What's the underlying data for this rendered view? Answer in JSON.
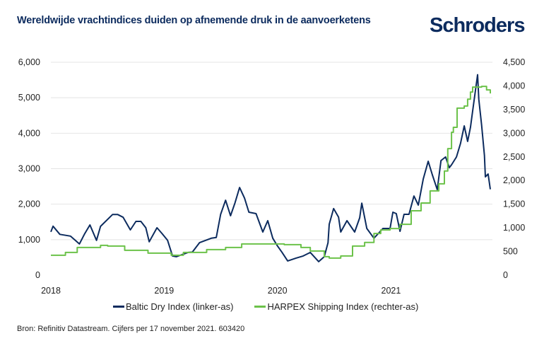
{
  "title": "Wereldwijde vrachtindices duiden op afnemende druk in de aanvoerketens",
  "logo_text": "Schroders",
  "source": "Bron: Refinitiv Datastream. Cijfers per 17 november 2021. 603420",
  "colors": {
    "baltic": "#0c2b5e",
    "harpex": "#6cc24a",
    "grid": "#e4e4e4",
    "brand": "#0c2b5e"
  },
  "chart_data": {
    "type": "line",
    "title": "Wereldwijde vrachtindices duiden op afnemende druk in de aanvoerketens",
    "xlim": [
      "2018-01-01",
      "2021-11-17"
    ],
    "x_ticks": [
      {
        "date": "2018-01-01",
        "label": "2018"
      },
      {
        "date": "2019-01-01",
        "label": "2019"
      },
      {
        "date": "2020-01-01",
        "label": "2020"
      },
      {
        "date": "2021-01-01",
        "label": "2021"
      }
    ],
    "y_left": {
      "lim": [
        0,
        6000
      ],
      "ticks": [
        0,
        1000,
        2000,
        3000,
        4000,
        5000,
        6000
      ],
      "tick_labels": [
        "0",
        "1,000",
        "2,000",
        "3,000",
        "4,000",
        "5,000",
        "6,000"
      ]
    },
    "y_right": {
      "lim": [
        0,
        4500
      ],
      "ticks": [
        0,
        500,
        1000,
        1500,
        2000,
        2500,
        3000,
        3500,
        4000,
        4500
      ],
      "tick_labels": [
        "0",
        "500",
        "1,000",
        "1,500",
        "2,000",
        "2,500",
        "3,000",
        "3,500",
        "4,000",
        "4,500"
      ]
    },
    "grid": true,
    "legend_placement": "bottom",
    "series": [
      {
        "name": "Baltic Dry Index (linker-as)",
        "axis": "left",
        "color": "#0c2b5e",
        "points": [
          [
            "2018-01-01",
            1220
          ],
          [
            "2018-01-08",
            1380
          ],
          [
            "2018-01-30",
            1150
          ],
          [
            "2018-03-05",
            1100
          ],
          [
            "2018-04-03",
            880
          ],
          [
            "2018-04-19",
            1150
          ],
          [
            "2018-05-07",
            1415
          ],
          [
            "2018-05-28",
            980
          ],
          [
            "2018-06-10",
            1375
          ],
          [
            "2018-07-19",
            1710
          ],
          [
            "2018-08-04",
            1710
          ],
          [
            "2018-08-22",
            1630
          ],
          [
            "2018-09-14",
            1275
          ],
          [
            "2018-10-02",
            1515
          ],
          [
            "2018-10-18",
            1515
          ],
          [
            "2018-11-03",
            1335
          ],
          [
            "2018-11-14",
            940
          ],
          [
            "2018-12-09",
            1335
          ],
          [
            "2018-12-25",
            1175
          ],
          [
            "2019-01-12",
            980
          ],
          [
            "2019-01-28",
            540
          ],
          [
            "2019-02-09",
            520
          ],
          [
            "2019-03-19",
            640
          ],
          [
            "2019-04-02",
            650
          ],
          [
            "2019-04-25",
            915
          ],
          [
            "2019-06-02",
            1040
          ],
          [
            "2019-06-18",
            1060
          ],
          [
            "2019-07-02",
            1715
          ],
          [
            "2019-07-18",
            2110
          ],
          [
            "2019-08-03",
            1675
          ],
          [
            "2019-08-17",
            2030
          ],
          [
            "2019-09-01",
            2470
          ],
          [
            "2019-09-17",
            2170
          ],
          [
            "2019-10-01",
            1775
          ],
          [
            "2019-10-24",
            1735
          ],
          [
            "2019-11-15",
            1215
          ],
          [
            "2019-12-01",
            1535
          ],
          [
            "2019-12-17",
            1040
          ],
          [
            "2019-12-31",
            840
          ],
          [
            "2020-01-16",
            640
          ],
          [
            "2020-02-03",
            400
          ],
          [
            "2020-03-01",
            480
          ],
          [
            "2020-03-24",
            540
          ],
          [
            "2020-04-16",
            640
          ],
          [
            "2020-05-13",
            380
          ],
          [
            "2020-05-31",
            520
          ],
          [
            "2020-06-12",
            915
          ],
          [
            "2020-06-16",
            1435
          ],
          [
            "2020-06-30",
            1875
          ],
          [
            "2020-07-16",
            1635
          ],
          [
            "2020-07-23",
            1215
          ],
          [
            "2020-08-12",
            1535
          ],
          [
            "2020-09-06",
            1215
          ],
          [
            "2020-09-22",
            1615
          ],
          [
            "2020-09-29",
            2030
          ],
          [
            "2020-10-15",
            1315
          ],
          [
            "2020-11-07",
            1040
          ],
          [
            "2020-12-06",
            1315
          ],
          [
            "2020-12-29",
            1315
          ],
          [
            "2021-01-07",
            1775
          ],
          [
            "2021-01-18",
            1735
          ],
          [
            "2021-01-30",
            1235
          ],
          [
            "2021-02-12",
            1715
          ],
          [
            "2021-02-28",
            1715
          ],
          [
            "2021-03-16",
            2230
          ],
          [
            "2021-03-30",
            1975
          ],
          [
            "2021-04-15",
            2710
          ],
          [
            "2021-05-01",
            3210
          ],
          [
            "2021-05-14",
            2830
          ],
          [
            "2021-05-30",
            2410
          ],
          [
            "2021-06-11",
            3230
          ],
          [
            "2021-06-26",
            3330
          ],
          [
            "2021-07-08",
            3030
          ],
          [
            "2021-07-15",
            3110
          ],
          [
            "2021-07-31",
            3330
          ],
          [
            "2021-08-13",
            3710
          ],
          [
            "2021-08-25",
            4205
          ],
          [
            "2021-09-05",
            3770
          ],
          [
            "2021-09-14",
            4165
          ],
          [
            "2021-09-21",
            4625
          ],
          [
            "2021-10-07",
            5650
          ],
          [
            "2021-10-11",
            4960
          ],
          [
            "2021-10-20",
            4225
          ],
          [
            "2021-10-29",
            3370
          ],
          [
            "2021-11-01",
            2770
          ],
          [
            "2021-11-10",
            2850
          ],
          [
            "2021-11-17",
            2420
          ]
        ]
      },
      {
        "name": "HARPEX Shipping Index (rechter-as)",
        "axis": "right",
        "color": "#6cc24a",
        "style": "step",
        "points": [
          [
            "2018-01-01",
            420
          ],
          [
            "2018-02-17",
            480
          ],
          [
            "2018-03-27",
            585
          ],
          [
            "2018-06-10",
            630
          ],
          [
            "2018-07-03",
            615
          ],
          [
            "2018-08-27",
            525
          ],
          [
            "2018-11-10",
            465
          ],
          [
            "2019-01-24",
            420
          ],
          [
            "2019-03-04",
            480
          ],
          [
            "2019-05-18",
            540
          ],
          [
            "2019-07-18",
            585
          ],
          [
            "2019-09-08",
            660
          ],
          [
            "2019-11-25",
            660
          ],
          [
            "2020-01-23",
            645
          ],
          [
            "2020-03-17",
            585
          ],
          [
            "2020-04-16",
            510
          ],
          [
            "2020-05-31",
            390
          ],
          [
            "2020-06-16",
            360
          ],
          [
            "2020-07-23",
            405
          ],
          [
            "2020-08-30",
            615
          ],
          [
            "2020-10-08",
            690
          ],
          [
            "2020-11-07",
            880
          ],
          [
            "2020-11-29",
            955
          ],
          [
            "2020-12-29",
            985
          ],
          [
            "2021-01-30",
            1075
          ],
          [
            "2021-03-07",
            1360
          ],
          [
            "2021-04-08",
            1525
          ],
          [
            "2021-05-07",
            1780
          ],
          [
            "2021-06-04",
            1930
          ],
          [
            "2021-06-22",
            2200
          ],
          [
            "2021-07-03",
            2675
          ],
          [
            "2021-07-15",
            3020
          ],
          [
            "2021-07-21",
            3125
          ],
          [
            "2021-08-02",
            3530
          ],
          [
            "2021-08-25",
            3575
          ],
          [
            "2021-09-05",
            3720
          ],
          [
            "2021-09-14",
            3870
          ],
          [
            "2021-09-21",
            3975
          ],
          [
            "2021-10-20",
            3990
          ],
          [
            "2021-11-05",
            3915
          ],
          [
            "2021-11-17",
            3840
          ]
        ]
      }
    ]
  }
}
